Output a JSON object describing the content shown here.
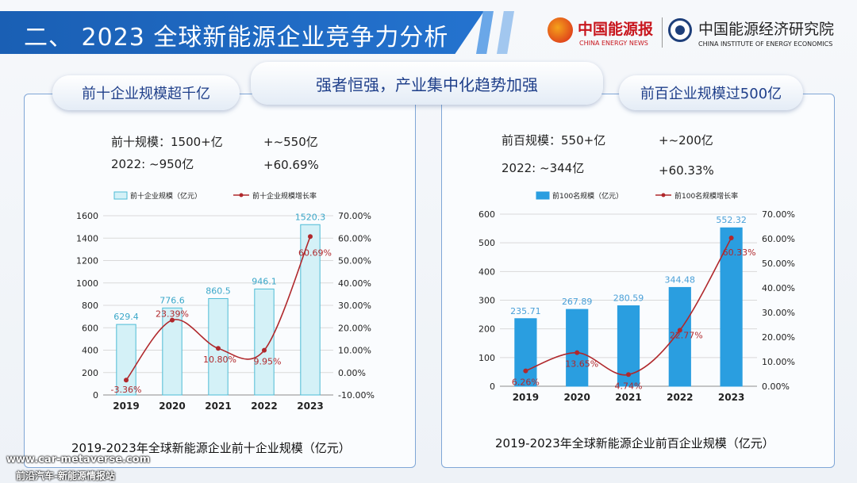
{
  "header": {
    "section_title": "二、 2023 全球新能源企业竞争力分析",
    "logo1_cn": "中国能源报",
    "logo1_en": "CHINA ENERGY NEWS",
    "logo2_cn": "中国能源经济研究院",
    "logo2_en": "CHINA INSTITUTE OF ENERGY ECONOMICS"
  },
  "center_pill": "强者恒强，产业集中化趋势加强",
  "left": {
    "pill": "前十企业规模超千亿",
    "stat1_label": "前十规模：1500+亿",
    "stat1_delta": "+~550亿",
    "stat2_label": "2022: ~950亿",
    "stat2_delta": "+60.69%",
    "caption": "2019-2023年全球新能源企业前十企业规模（亿元）"
  },
  "right": {
    "pill": "前百企业规模过500亿",
    "stat1_label": "前百规模：550+亿",
    "stat1_delta": "+~200亿",
    "stat2_label": "2022: ~344亿",
    "stat2_delta": "+60.33%",
    "caption": "2019-2023年全球新能源企业前百企业规模（亿元）"
  },
  "watermark": {
    "line1": "www.car-metaverse.com",
    "line2": "前沿汽车-新能源情报站"
  },
  "colors": {
    "left_bar_fill": "#d4f1f7",
    "left_bar_stroke": "#4dbcd6",
    "right_bar_fill": "#2a9ee0",
    "line": "#b0282c",
    "bar_label_left": "#3aa7c9",
    "bar_label_right": "#4aa0d8",
    "line_label": "#b0282c"
  },
  "chart_data": [
    {
      "type": "bar",
      "categories": [
        "2019",
        "2020",
        "2021",
        "2022",
        "2023"
      ],
      "series": [
        {
          "name": "前十企业规模（亿元）",
          "type": "bar",
          "axis": "left",
          "values": [
            629.4,
            776.6,
            860.5,
            946.1,
            1520.3
          ],
          "labels": [
            "629.4",
            "776.6",
            "860.5",
            "946.1",
            "1520.3"
          ]
        },
        {
          "name": "前十企业规模增长率",
          "type": "line",
          "axis": "right",
          "values": [
            -3.36,
            23.39,
            10.8,
            9.95,
            60.69
          ],
          "labels": [
            "-3.36%",
            "23.39%",
            "10.80%",
            "9.95%",
            "60.69%"
          ]
        }
      ],
      "ylim": [
        0,
        1600
      ],
      "yticks": [
        0,
        200,
        400,
        600,
        800,
        1000,
        1200,
        1400,
        1600
      ],
      "y2lim": [
        -10,
        70
      ],
      "y2ticks": [
        -10,
        0,
        10,
        20,
        30,
        40,
        50,
        60,
        70
      ],
      "y2tick_labels": [
        "-10.00%",
        "0.00%",
        "10.00%",
        "20.00%",
        "30.00%",
        "40.00%",
        "50.00%",
        "60.00%",
        "70.00%"
      ],
      "grid": true,
      "legend": "top"
    },
    {
      "type": "bar",
      "categories": [
        "2019",
        "2020",
        "2021",
        "2022",
        "2023"
      ],
      "series": [
        {
          "name": "前100名规模（亿元）",
          "type": "bar",
          "axis": "left",
          "values": [
            235.71,
            267.89,
            280.59,
            344.48,
            552.32
          ],
          "labels": [
            "235.71",
            "267.89",
            "280.59",
            "344.48",
            "552.32"
          ]
        },
        {
          "name": "前100名规模增长率",
          "type": "line",
          "axis": "right",
          "values": [
            6.26,
            13.65,
            4.74,
            22.77,
            60.33
          ],
          "labels": [
            "6.26%",
            "13.65%",
            "4.74%",
            "22.77%",
            "60.33%"
          ]
        }
      ],
      "ylim": [
        0,
        600
      ],
      "yticks": [
        0,
        100,
        200,
        300,
        400,
        500,
        600
      ],
      "y2lim": [
        0,
        70
      ],
      "y2ticks": [
        0,
        10,
        20,
        30,
        40,
        50,
        60,
        70
      ],
      "y2tick_labels": [
        "0.00%",
        "10.00%",
        "20.00%",
        "30.00%",
        "40.00%",
        "50.00%",
        "60.00%",
        "70.00%"
      ],
      "grid": true,
      "legend": "top"
    }
  ]
}
